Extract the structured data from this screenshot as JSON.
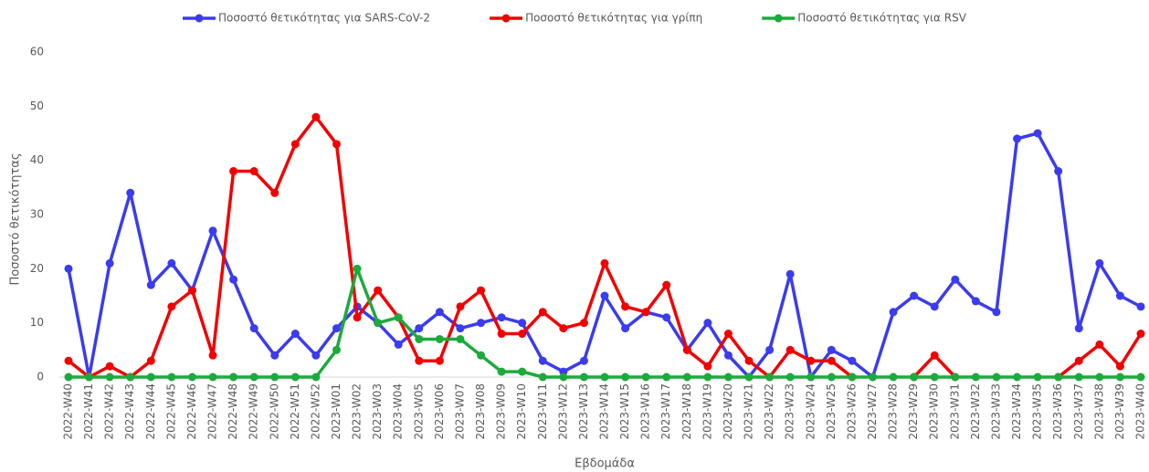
{
  "chart_data": {
    "type": "line",
    "categories": [
      "2022-W40",
      "2022-W41",
      "2022-W42",
      "2022-W43",
      "2022-W44",
      "2022-W45",
      "2022-W46",
      "2022-W47",
      "2022-W48",
      "2022-W49",
      "2022-W50",
      "2022-W51",
      "2022-W52",
      "2023-W01",
      "2023-W02",
      "2023-W03",
      "2023-W04",
      "2023-W05",
      "2023-W06",
      "2023-W07",
      "2023-W08",
      "2023-W09",
      "2023-W10",
      "2023-W11",
      "2023-W12",
      "2023-W13",
      "2023-W14",
      "2023-W15",
      "2023-W16",
      "2023-W17",
      "2023-W18",
      "2023-W19",
      "2023-W20",
      "2023-W21",
      "2023-W22",
      "2023-W23",
      "2023-W24",
      "2023-W25",
      "2023-W26",
      "2023-W27",
      "2023-W28",
      "2023-W29",
      "2023-W30",
      "2023-W31",
      "2023-W32",
      "2023-W33",
      "2023-W34",
      "2023-W35",
      "2023-W36",
      "2023-W37",
      "2023-W38",
      "2023-W39",
      "2023-W40"
    ],
    "series": [
      {
        "name": "Ποσοστό θετικότητας για SARS-CoV-2",
        "color": "#3b3bef",
        "values": [
          20,
          0,
          21,
          34,
          17,
          21,
          16,
          27,
          18,
          9,
          4,
          8,
          4,
          9,
          13,
          10,
          6,
          9,
          12,
          9,
          10,
          11,
          10,
          3,
          1,
          3,
          15,
          9,
          12,
          11,
          5,
          10,
          4,
          0,
          5,
          19,
          0,
          5,
          3,
          0,
          12,
          15,
          13,
          18,
          14,
          12,
          44,
          45,
          38,
          9,
          21,
          15,
          13
        ]
      },
      {
        "name": "Ποσοστό θετικότητας για γρίπη",
        "color": "#f20000",
        "values": [
          3,
          0,
          2,
          0,
          3,
          13,
          16,
          4,
          38,
          38,
          34,
          43,
          48,
          43,
          11,
          16,
          11,
          3,
          3,
          13,
          16,
          8,
          8,
          12,
          9,
          10,
          21,
          13,
          12,
          17,
          5,
          2,
          8,
          3,
          0,
          5,
          3,
          3,
          0,
          null,
          null,
          0,
          4,
          0,
          null,
          null,
          null,
          null,
          0,
          3,
          6,
          2,
          8
        ]
      },
      {
        "name": "Ποσοστό θετικότητας για RSV",
        "color": "#1daa3c",
        "values": [
          0,
          0,
          0,
          0,
          0,
          0,
          0,
          0,
          0,
          0,
          0,
          0,
          0,
          5,
          20,
          10,
          11,
          7,
          7,
          7,
          4,
          1,
          1,
          0,
          0,
          0,
          0,
          0,
          0,
          0,
          0,
          0,
          0,
          0,
          0,
          0,
          0,
          0,
          0,
          0,
          0,
          0,
          0,
          0,
          0,
          0,
          0,
          0,
          0,
          0,
          0,
          0,
          0
        ]
      }
    ],
    "y_label": "Ποσοστό θετικότητας",
    "x_label": "Εβδομάδα",
    "ylim": [
      0,
      60
    ],
    "yticks": [
      0,
      10,
      20,
      30,
      40,
      50,
      60
    ],
    "grid": false,
    "legend": "top"
  }
}
